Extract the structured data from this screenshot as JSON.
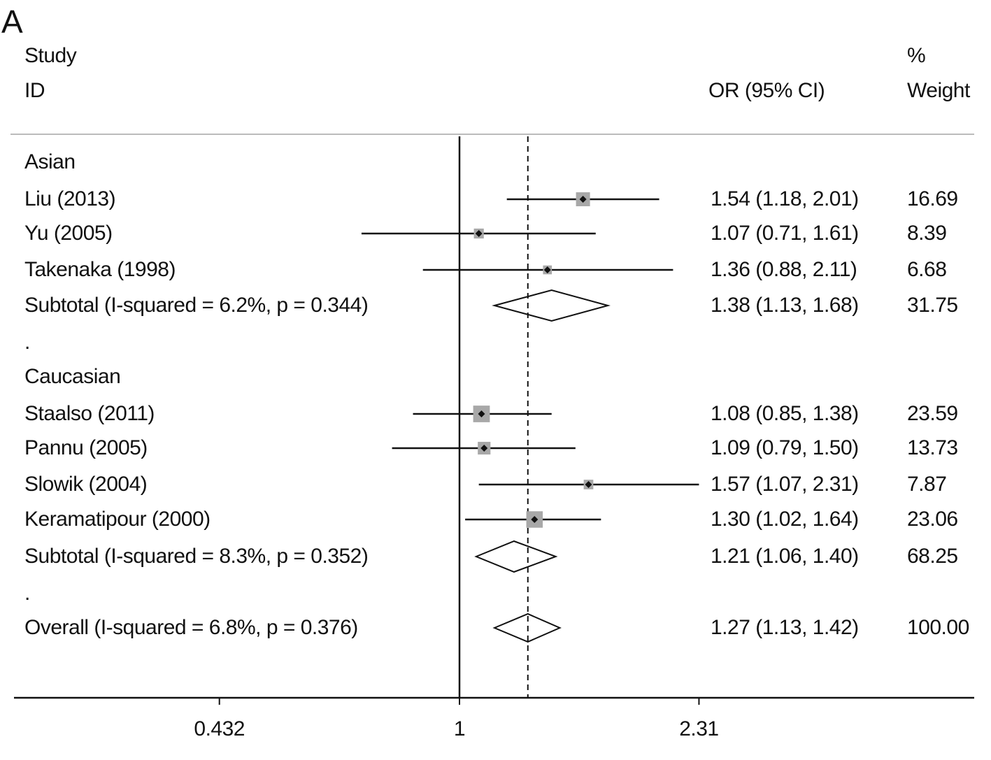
{
  "panel_label": "A",
  "chart_data": {
    "type": "forest",
    "headers": {
      "study_line1": "Study",
      "study_line2": "ID",
      "or": "OR (95% CI)",
      "weight_line1": "%",
      "weight_line2": "Weight"
    },
    "x_scale": "log",
    "null_line": 1,
    "overall_line": 1.27,
    "xticks": [
      {
        "value": 0.432,
        "label": "0.432"
      },
      {
        "value": 1,
        "label": "1"
      },
      {
        "value": 2.31,
        "label": "2.31"
      }
    ],
    "rows": [
      {
        "kind": "group",
        "label": "Asian"
      },
      {
        "kind": "study",
        "label": "Liu (2013)",
        "or": 1.54,
        "lo": 1.18,
        "hi": 2.01,
        "text": "1.54 (1.18, 2.01)",
        "weight": "16.69"
      },
      {
        "kind": "study",
        "label": "Yu (2005)",
        "or": 1.07,
        "lo": 0.71,
        "hi": 1.61,
        "text": "1.07 (0.71, 1.61)",
        "weight": "8.39"
      },
      {
        "kind": "study",
        "label": "Takenaka (1998)",
        "or": 1.36,
        "lo": 0.88,
        "hi": 2.11,
        "text": "1.36 (0.88, 2.11)",
        "weight": "6.68"
      },
      {
        "kind": "subtotal",
        "label": "Subtotal  (I-squared = 6.2%, p = 0.344)",
        "or": 1.38,
        "lo": 1.13,
        "hi": 1.68,
        "text": "1.38 (1.13, 1.68)",
        "weight": "31.75"
      },
      {
        "kind": "spacer",
        "label": "."
      },
      {
        "kind": "group",
        "label": "Caucasian"
      },
      {
        "kind": "study",
        "label": "Staalso (2011)",
        "or": 1.08,
        "lo": 0.85,
        "hi": 1.38,
        "text": "1.08 (0.85, 1.38)",
        "weight": "23.59"
      },
      {
        "kind": "study",
        "label": "Pannu (2005)",
        "or": 1.09,
        "lo": 0.79,
        "hi": 1.5,
        "text": "1.09 (0.79, 1.50)",
        "weight": "13.73"
      },
      {
        "kind": "study",
        "label": "Slowik (2004)",
        "or": 1.57,
        "lo": 1.07,
        "hi": 2.31,
        "text": "1.57 (1.07, 2.31)",
        "weight": "7.87"
      },
      {
        "kind": "study",
        "label": "Keramatipour (2000)",
        "or": 1.3,
        "lo": 1.02,
        "hi": 1.64,
        "text": "1.30 (1.02, 1.64)",
        "weight": "23.06"
      },
      {
        "kind": "subtotal",
        "label": "Subtotal  (I-squared = 8.3%, p = 0.352)",
        "or": 1.21,
        "lo": 1.06,
        "hi": 1.4,
        "text": "1.21 (1.06, 1.40)",
        "weight": "68.25"
      },
      {
        "kind": "spacer",
        "label": "."
      },
      {
        "kind": "overall",
        "label": "Overall  (I-squared = 6.8%, p = 0.376)",
        "or": 1.27,
        "lo": 1.13,
        "hi": 1.42,
        "text": "1.27 (1.13, 1.42)",
        "weight": "100.00"
      }
    ],
    "colors": {
      "square": "#a8a8a8",
      "line": "#111111"
    }
  }
}
